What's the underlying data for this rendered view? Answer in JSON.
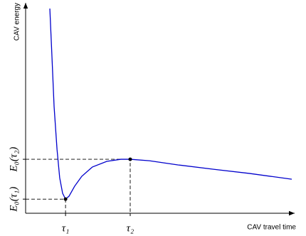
{
  "chart_data": {
    "type": "line",
    "x_label": "CAV travel time",
    "y_label": "CAV energy",
    "x": [
      9.1,
      9.9,
      10.7,
      11.8,
      12.8,
      13.9,
      15,
      16.3,
      18.4,
      21.1,
      25.1,
      30.5,
      35.8,
      39.3,
      46.5,
      57.2,
      70.6,
      84,
      100
    ],
    "series": [
      {
        "color": "#0000cc",
        "values": [
          98.6,
          75.3,
          51.4,
          30.8,
          17.1,
          9.6,
          6.8,
          8.2,
          13,
          17.8,
          22.3,
          25,
          26,
          26,
          25.3,
          23.3,
          21.2,
          19.2,
          16.4
        ]
      }
    ],
    "xlim": [
      0,
      100
    ],
    "ylim": [
      0,
      100
    ],
    "xticks": [
      {
        "value": 15,
        "label": "τ₁"
      },
      {
        "value": 39.3,
        "label": "τ₂"
      }
    ],
    "yticks": [
      {
        "value": 6.8,
        "label": "E₀(τ₁)"
      },
      {
        "value": 26,
        "label": "E₀(τ₂)"
      }
    ]
  }
}
